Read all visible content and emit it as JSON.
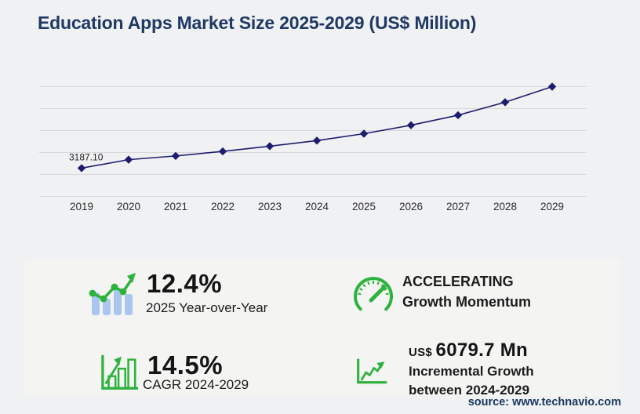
{
  "header": {
    "title": "Education Apps Market Size 2025-2029 (US$ Million)"
  },
  "chart_data": {
    "type": "line",
    "title": "Education Apps Market Size 2025-2029 (US$ Million)",
    "categories": [
      "2019",
      "2020",
      "2021",
      "2022",
      "2023",
      "2024",
      "2025",
      "2026",
      "2027",
      "2028",
      "2029"
    ],
    "values": [
      3187.1,
      4140,
      4560,
      5070,
      5660,
      6285,
      7065,
      8020,
      9145,
      10610,
      12365
    ],
    "labeled_points": [
      {
        "category": "2019",
        "label": "3187.10"
      }
    ],
    "xlabel": "",
    "ylabel": "",
    "ylim": [
      0,
      12365
    ],
    "grid": true,
    "gridline_count": 6,
    "legend": "none",
    "marker": "diamond"
  },
  "stats": {
    "yoy": {
      "value": "12.4%",
      "label": "2025 Year-over-Year"
    },
    "momentum": {
      "line1": "ACCELERATING",
      "line2": "Growth Momentum"
    },
    "cagr": {
      "value": "14.5%",
      "label": "CAGR 2024-2029"
    },
    "incremental": {
      "currency": "US$",
      "value": "6079.7 Mn",
      "line1": "Incremental Growth",
      "line2": "between 2024-2029"
    }
  },
  "footer": {
    "source": "source: www.technavio.com"
  },
  "colors": {
    "navy": "#1f3864",
    "source_navy": "#17365d",
    "line": "#1d1d70",
    "grid": "#d9d9d9",
    "green": "#2eb23e",
    "light_blue": "#a9c7ee",
    "page_bg": "#f0f1f3",
    "panel_bg": "#f4f4f2"
  }
}
